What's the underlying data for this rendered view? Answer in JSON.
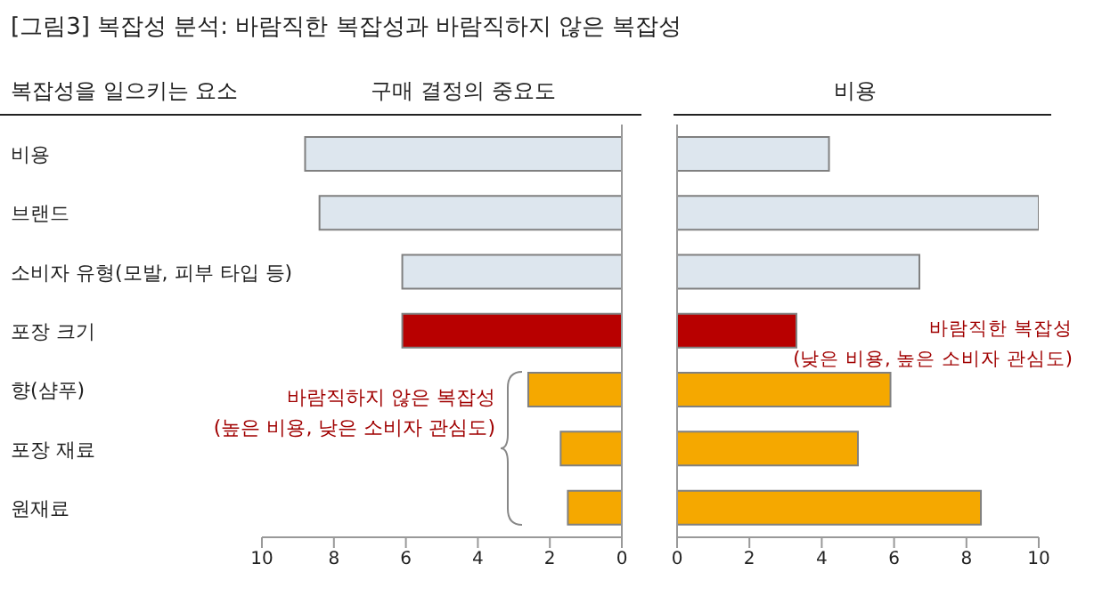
{
  "chart_data": [
    {
      "type": "bar",
      "orientation": "horizontal",
      "title": "[그림3] 복잡성 분석: 바람직한 복잡성과 바람직하지 않은 복잡성",
      "subtitle": "구매 결정의 중요도",
      "ylabel": "복잡성을 일으키는 요소",
      "categories": [
        "비용",
        "브랜드",
        "소비자 유형(모발, 피부 타입 등)",
        "포장 크기",
        "향(샴푸)",
        "포장 재료",
        "원재료"
      ],
      "values": [
        8.8,
        8.4,
        6.1,
        6.1,
        2.6,
        1.7,
        1.5
      ],
      "colors": [
        "#dde6ee",
        "#dde6ee",
        "#dde6ee",
        "#b80000",
        "#f5a800",
        "#f5a800",
        "#f5a800"
      ],
      "xlim": [
        10,
        0
      ],
      "xticks": [
        10,
        8,
        6,
        4,
        2,
        0
      ],
      "annotations": [
        "바람직하지 않은 복잡성\n(높은 비용, 낮은 소비자 관심도)"
      ]
    },
    {
      "type": "bar",
      "orientation": "horizontal",
      "title": "비용",
      "tick_labels": "x",
      "categories": [
        null,
        null,
        null,
        null,
        null,
        null,
        null
      ],
      "values": [
        4.2,
        10,
        6.7,
        3.3,
        5.9,
        5.0,
        8.4
      ],
      "colors": [
        "#dde6ee",
        "#dde6ee",
        "#dde6ee",
        "#b80000",
        "#f5a800",
        "#f5a800",
        "#f5a800"
      ],
      "xlim": [
        0,
        10
      ],
      "xticks": [
        0,
        2,
        4,
        6,
        8,
        10
      ],
      "annotations": [
        "바람직한 복잡성\n(낮은 비용, 높은 소비자 관심도)"
      ]
    }
  ]
}
